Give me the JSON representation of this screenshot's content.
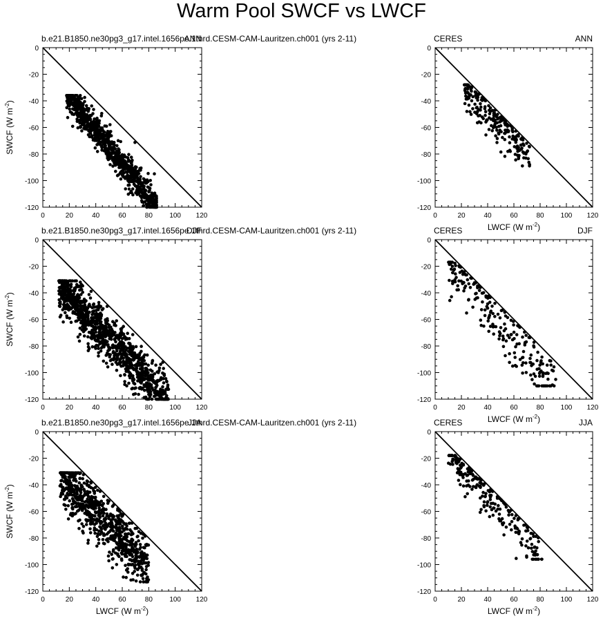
{
  "title": "Warm Pool SWCF vs LWCF",
  "chart_data": [
    {
      "panel": "model-ann",
      "type": "scatter",
      "left_label": "b.e21.B1850.ne30pg3_g17.intel.1656pe.1thrd.CESM-CAM-Lauritzen.ch001 (yrs 2-11)",
      "right_label": "ANN",
      "xlabel": "",
      "ylabel": "SWCF (W m-2)",
      "xlim": [
        0,
        120
      ],
      "ylim": [
        -120,
        0
      ],
      "x_ticks": [
        0,
        20,
        40,
        60,
        80,
        100,
        120
      ],
      "y_ticks": [
        0,
        -20,
        -40,
        -60,
        -80,
        -100,
        -120
      ],
      "reference_line": [
        [
          0,
          0
        ],
        [
          120,
          -120
        ]
      ],
      "n_points": 900,
      "point_range": {
        "x": [
          18,
          86
        ],
        "y": [
          -120,
          -36
        ]
      }
    },
    {
      "panel": "obs-ann",
      "type": "scatter",
      "left_label": "CERES",
      "right_label": "ANN",
      "xlabel": "LWCF (W m-2)",
      "ylabel": "",
      "xlim": [
        0,
        120
      ],
      "ylim": [
        -120,
        0
      ],
      "x_ticks": [
        0,
        20,
        40,
        60,
        80,
        100,
        120
      ],
      "y_ticks": [
        0,
        -20,
        -40,
        -60,
        -80,
        -100,
        -120
      ],
      "reference_line": [
        [
          0,
          0
        ],
        [
          120,
          -120
        ]
      ],
      "n_points": 230,
      "point_range": {
        "x": [
          22,
          72
        ],
        "y": [
          -89,
          -28
        ]
      }
    },
    {
      "panel": "model-djf",
      "type": "scatter",
      "left_label": "b.e21.B1850.ne30pg3_g17.intel.1656pe.1thrd.CESM-CAM-Lauritzen.ch001 (yrs 2-11)",
      "right_label": "DJF",
      "xlabel": "",
      "ylabel": "SWCF (W m-2)",
      "xlim": [
        0,
        120
      ],
      "ylim": [
        -120,
        0
      ],
      "x_ticks": [
        0,
        20,
        40,
        60,
        80,
        100,
        120
      ],
      "y_ticks": [
        0,
        -20,
        -40,
        -60,
        -80,
        -100,
        -120
      ],
      "reference_line": [
        [
          0,
          0
        ],
        [
          120,
          -120
        ]
      ],
      "n_points": 1100,
      "point_range": {
        "x": [
          12,
          95
        ],
        "y": [
          -120,
          -31
        ]
      }
    },
    {
      "panel": "obs-djf",
      "type": "scatter",
      "left_label": "CERES",
      "right_label": "DJF",
      "xlabel": "LWCF (W m-2)",
      "ylabel": "",
      "xlim": [
        0,
        120
      ],
      "ylim": [
        -120,
        0
      ],
      "x_ticks": [
        0,
        20,
        40,
        60,
        80,
        100,
        120
      ],
      "y_ticks": [
        0,
        -20,
        -40,
        -60,
        -80,
        -100,
        -120
      ],
      "reference_line": [
        [
          0,
          0
        ],
        [
          120,
          -120
        ]
      ],
      "n_points": 230,
      "point_range": {
        "x": [
          10,
          92
        ],
        "y": [
          -110,
          -17
        ]
      }
    },
    {
      "panel": "model-jja",
      "type": "scatter",
      "left_label": "b.e21.B1850.ne30pg3_g17.intel.1656pe.1thrd.CESM-CAM-Lauritzen.ch001 (yrs 2-11)",
      "right_label": "JJA",
      "xlabel": "LWCF (W m-2)",
      "ylabel": "SWCF (W m-2)",
      "xlim": [
        0,
        120
      ],
      "ylim": [
        -120,
        0
      ],
      "x_ticks": [
        0,
        20,
        40,
        60,
        80,
        100,
        120
      ],
      "y_ticks": [
        0,
        -20,
        -40,
        -60,
        -80,
        -100,
        -120
      ],
      "reference_line": [
        [
          0,
          0
        ],
        [
          120,
          -120
        ]
      ],
      "n_points": 800,
      "point_range": {
        "x": [
          13,
          80
        ],
        "y": [
          -113,
          -31
        ]
      }
    },
    {
      "panel": "obs-jja",
      "type": "scatter",
      "left_label": "CERES",
      "right_label": "JJA",
      "xlabel": "LWCF (W m-2)",
      "ylabel": "",
      "xlim": [
        0,
        120
      ],
      "ylim": [
        -120,
        0
      ],
      "x_ticks": [
        0,
        20,
        40,
        60,
        80,
        100,
        120
      ],
      "y_ticks": [
        0,
        -20,
        -40,
        -60,
        -80,
        -100,
        -120
      ],
      "reference_line": [
        [
          0,
          0
        ],
        [
          120,
          -120
        ]
      ],
      "n_points": 230,
      "point_range": {
        "x": [
          10,
          82
        ],
        "y": [
          -96,
          -18
        ]
      }
    }
  ]
}
